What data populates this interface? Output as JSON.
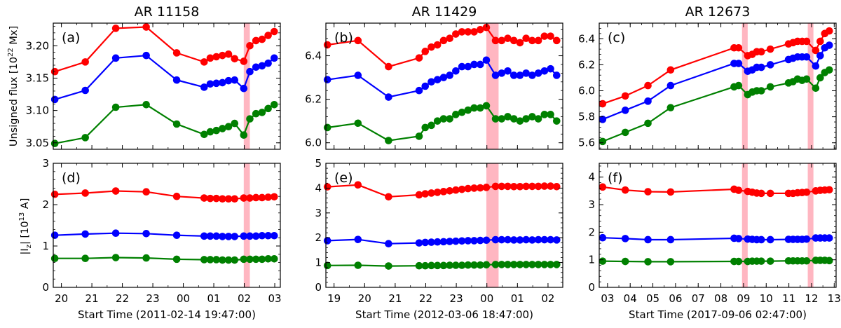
{
  "colors": {
    "red": "#ff0000",
    "blue": "#0000ff",
    "green": "#008000",
    "flare": "#ffb6c1"
  },
  "ylabels": {
    "top": "Unsigned flux [10",
    "top_sup": "22",
    "top_end": " Mx]",
    "bottom": "|I",
    "bottom_sub": "z",
    "bottom_mid": "| [10",
    "bottom_sup": "13",
    "bottom_end": " A]"
  },
  "chart_data": [
    {
      "type": "line",
      "panel": "(a)",
      "title": "AR 11158",
      "xlabel": "Start Time (2011-02-14 19:47:00)",
      "x_unit": "hours since start",
      "xlim": [
        -0.05,
        7.4
      ],
      "xticks": [
        0.217,
        1.217,
        2.217,
        3.217,
        4.217,
        5.217,
        6.217,
        7.217
      ],
      "xtick_labels": [
        "20",
        "21",
        "22",
        "23",
        "00",
        "01",
        "02",
        "03"
      ],
      "ylim": [
        3.04,
        3.235
      ],
      "yticks": [
        3.05,
        3.1,
        3.15,
        3.2
      ],
      "ytick_labels": [
        "3.05",
        "3.10",
        "3.15",
        "3.20"
      ],
      "flares": [
        [
          6.2,
          6.4
        ]
      ],
      "x": [
        0,
        1,
        2,
        3,
        4,
        4.9,
        5.1,
        5.3,
        5.5,
        5.7,
        5.9,
        6.2,
        6.4,
        6.6,
        6.8,
        7.0,
        7.2
      ],
      "series": [
        {
          "color": "red",
          "values": [
            3.16,
            3.175,
            3.227,
            3.229,
            3.189,
            3.175,
            3.181,
            3.183,
            3.185,
            3.187,
            3.18,
            3.176,
            3.2,
            3.208,
            3.21,
            3.216,
            3.222
          ]
        },
        {
          "color": "blue",
          "values": [
            3.117,
            3.131,
            3.181,
            3.185,
            3.147,
            3.136,
            3.141,
            3.142,
            3.143,
            3.146,
            3.147,
            3.134,
            3.16,
            3.167,
            3.169,
            3.173,
            3.181
          ]
        },
        {
          "color": "green",
          "values": [
            3.049,
            3.058,
            3.105,
            3.109,
            3.079,
            3.063,
            3.067,
            3.069,
            3.072,
            3.075,
            3.08,
            3.062,
            3.087,
            3.095,
            3.097,
            3.103,
            3.109
          ]
        }
      ]
    },
    {
      "type": "line",
      "panel": "(b)",
      "title": "AR 11429",
      "xlabel": "Start Time (2012-03-06 18:47:00)",
      "x_unit": "hours since start",
      "xlim": [
        -0.05,
        7.7
      ],
      "xticks": [
        0.217,
        1.217,
        2.217,
        3.217,
        4.217,
        5.217,
        6.217,
        7.217
      ],
      "xtick_labels": [
        "19",
        "20",
        "21",
        "22",
        "23",
        "00",
        "01",
        "02"
      ],
      "ylim": [
        5.97,
        6.55
      ],
      "yticks": [
        6.0,
        6.2,
        6.4
      ],
      "ytick_labels": [
        "6.0",
        "6.2",
        "6.4"
      ],
      "flares": [
        [
          5.2,
          5.6
        ]
      ],
      "x": [
        0,
        1,
        2,
        3,
        3.2,
        3.4,
        3.6,
        3.8,
        4.0,
        4.2,
        4.4,
        4.6,
        4.8,
        5.0,
        5.2,
        5.5,
        5.7,
        5.9,
        6.1,
        6.3,
        6.5,
        6.7,
        6.9,
        7.1,
        7.3,
        7.5
      ],
      "series": [
        {
          "color": "red",
          "values": [
            6.45,
            6.47,
            6.35,
            6.39,
            6.42,
            6.44,
            6.45,
            6.47,
            6.48,
            6.5,
            6.51,
            6.51,
            6.51,
            6.52,
            6.53,
            6.47,
            6.47,
            6.48,
            6.47,
            6.46,
            6.48,
            6.47,
            6.47,
            6.49,
            6.49,
            6.47
          ]
        },
        {
          "color": "blue",
          "values": [
            6.29,
            6.31,
            6.21,
            6.24,
            6.26,
            6.28,
            6.29,
            6.3,
            6.31,
            6.33,
            6.35,
            6.35,
            6.36,
            6.36,
            6.38,
            6.31,
            6.32,
            6.33,
            6.31,
            6.31,
            6.32,
            6.31,
            6.32,
            6.33,
            6.34,
            6.31
          ]
        },
        {
          "color": "green",
          "values": [
            6.07,
            6.09,
            6.01,
            6.03,
            6.07,
            6.08,
            6.1,
            6.11,
            6.11,
            6.13,
            6.14,
            6.15,
            6.16,
            6.16,
            6.17,
            6.11,
            6.11,
            6.12,
            6.11,
            6.1,
            6.11,
            6.12,
            6.11,
            6.13,
            6.13,
            6.1
          ]
        }
      ]
    },
    {
      "type": "line",
      "panel": "(c)",
      "title": "AR 12673",
      "xlabel": "Start Time (2017-09-06 02:47:00)",
      "x_unit": "hours since start",
      "xlim": [
        -0.15,
        10.3
      ],
      "xticks": [
        0.217,
        1.217,
        2.217,
        3.217,
        4.217,
        5.217,
        6.217,
        7.217,
        8.217,
        9.217,
        10.217
      ],
      "xtick_labels": [
        "03",
        "04",
        "05",
        "06",
        "07",
        "08",
        "09",
        "10",
        "11",
        "12",
        "13"
      ],
      "ylim": [
        5.55,
        6.52
      ],
      "yticks": [
        5.6,
        5.8,
        6.0,
        6.2,
        6.4
      ],
      "ytick_labels": [
        "5.6",
        "5.8",
        "6.0",
        "6.2",
        "6.4"
      ],
      "flares": [
        [
          6.15,
          6.4
        ],
        [
          9.05,
          9.3
        ]
      ],
      "x": [
        0,
        1,
        2,
        3,
        5.8,
        6.0,
        6.4,
        6.6,
        6.8,
        7.0,
        7.4,
        8.2,
        8.4,
        8.6,
        8.8,
        9.0,
        9.4,
        9.6,
        9.8,
        10.0
      ],
      "series": [
        {
          "color": "red",
          "values": [
            5.9,
            5.96,
            6.04,
            6.16,
            6.33,
            6.33,
            6.27,
            6.28,
            6.3,
            6.3,
            6.32,
            6.36,
            6.37,
            6.38,
            6.38,
            6.38,
            6.31,
            6.38,
            6.44,
            6.46
          ]
        },
        {
          "color": "blue",
          "values": [
            5.78,
            5.85,
            5.92,
            6.04,
            6.21,
            6.21,
            6.15,
            6.16,
            6.18,
            6.18,
            6.2,
            6.24,
            6.25,
            6.26,
            6.26,
            6.26,
            6.19,
            6.27,
            6.33,
            6.35
          ]
        },
        {
          "color": "green",
          "values": [
            5.61,
            5.68,
            5.75,
            5.87,
            6.03,
            6.04,
            5.97,
            5.99,
            6.0,
            6.0,
            6.03,
            6.06,
            6.07,
            6.09,
            6.08,
            6.09,
            6.02,
            6.1,
            6.14,
            6.16
          ]
        }
      ]
    },
    {
      "type": "line",
      "panel": "(d)",
      "title": "",
      "xlabel": "Start Time (2011-02-14 19:47:00)",
      "x_unit": "hours since start",
      "xlim": [
        -0.05,
        7.4
      ],
      "xticks": [
        0.217,
        1.217,
        2.217,
        3.217,
        4.217,
        5.217,
        6.217,
        7.217
      ],
      "xtick_labels": [
        "20",
        "21",
        "22",
        "23",
        "00",
        "01",
        "02",
        "03"
      ],
      "ylim": [
        0,
        3
      ],
      "yticks": [
        0,
        1,
        2,
        3
      ],
      "ytick_labels": [
        "0",
        "1",
        "2",
        "3"
      ],
      "flares": [
        [
          6.2,
          6.4
        ]
      ],
      "x": [
        0,
        1,
        2,
        3,
        4,
        4.9,
        5.1,
        5.3,
        5.5,
        5.7,
        5.9,
        6.2,
        6.4,
        6.6,
        6.8,
        7.0,
        7.2
      ],
      "series": [
        {
          "color": "red",
          "values": [
            2.25,
            2.28,
            2.33,
            2.31,
            2.2,
            2.16,
            2.15,
            2.15,
            2.14,
            2.14,
            2.14,
            2.16,
            2.16,
            2.17,
            2.17,
            2.18,
            2.19
          ]
        },
        {
          "color": "blue",
          "values": [
            1.26,
            1.29,
            1.31,
            1.3,
            1.26,
            1.24,
            1.24,
            1.24,
            1.23,
            1.23,
            1.23,
            1.24,
            1.24,
            1.24,
            1.25,
            1.25,
            1.25
          ]
        },
        {
          "color": "green",
          "values": [
            0.7,
            0.7,
            0.72,
            0.71,
            0.68,
            0.67,
            0.67,
            0.67,
            0.66,
            0.66,
            0.66,
            0.68,
            0.68,
            0.68,
            0.68,
            0.69,
            0.69
          ]
        }
      ]
    },
    {
      "type": "line",
      "panel": "(e)",
      "title": "",
      "xlabel": "Start Time (2012-03-06 18:47:00)",
      "x_unit": "hours since start",
      "xlim": [
        -0.05,
        7.7
      ],
      "xticks": [
        0.217,
        1.217,
        2.217,
        3.217,
        4.217,
        5.217,
        6.217,
        7.217
      ],
      "xtick_labels": [
        "19",
        "20",
        "21",
        "22",
        "23",
        "00",
        "01",
        "02"
      ],
      "ylim": [
        0,
        5
      ],
      "yticks": [
        0,
        1,
        2,
        3,
        4,
        5
      ],
      "ytick_labels": [
        "0",
        "1",
        "2",
        "3",
        "4",
        "5"
      ],
      "flares": [
        [
          5.2,
          5.6
        ]
      ],
      "x": [
        0,
        1,
        2,
        3,
        3.2,
        3.4,
        3.6,
        3.8,
        4.0,
        4.2,
        4.4,
        4.6,
        4.8,
        5.0,
        5.2,
        5.5,
        5.7,
        5.9,
        6.1,
        6.3,
        6.5,
        6.7,
        6.9,
        7.1,
        7.3,
        7.5
      ],
      "series": [
        {
          "color": "red",
          "values": [
            4.05,
            4.13,
            3.65,
            3.73,
            3.77,
            3.8,
            3.83,
            3.86,
            3.89,
            3.92,
            3.95,
            3.98,
            4.0,
            4.01,
            4.03,
            4.07,
            4.07,
            4.07,
            4.06,
            4.06,
            4.07,
            4.07,
            4.07,
            4.08,
            4.08,
            4.06
          ]
        },
        {
          "color": "blue",
          "values": [
            1.88,
            1.93,
            1.76,
            1.79,
            1.81,
            1.82,
            1.83,
            1.84,
            1.85,
            1.86,
            1.87,
            1.88,
            1.88,
            1.89,
            1.9,
            1.92,
            1.92,
            1.92,
            1.91,
            1.91,
            1.92,
            1.91,
            1.92,
            1.92,
            1.92,
            1.91
          ]
        },
        {
          "color": "green",
          "values": [
            0.88,
            0.89,
            0.86,
            0.87,
            0.87,
            0.88,
            0.88,
            0.88,
            0.89,
            0.89,
            0.89,
            0.9,
            0.9,
            0.9,
            0.91,
            0.92,
            0.92,
            0.92,
            0.92,
            0.92,
            0.92,
            0.92,
            0.92,
            0.92,
            0.92,
            0.92
          ]
        }
      ]
    },
    {
      "type": "line",
      "panel": "(f)",
      "title": "",
      "xlabel": "Start Time (2017-09-06 02:47:00)",
      "x_unit": "hours since start",
      "xlim": [
        -0.15,
        10.3
      ],
      "xticks": [
        0.217,
        1.217,
        2.217,
        3.217,
        4.217,
        5.217,
        6.217,
        7.217,
        8.217,
        9.217,
        10.217
      ],
      "xtick_labels": [
        "03",
        "04",
        "05",
        "06",
        "07",
        "08",
        "09",
        "10",
        "11",
        "12",
        "13"
      ],
      "ylim": [
        0,
        4.5
      ],
      "yticks": [
        0,
        1,
        2,
        3,
        4
      ],
      "ytick_labels": [
        "0",
        "1",
        "2",
        "3",
        "4"
      ],
      "flares": [
        [
          6.15,
          6.4
        ],
        [
          9.05,
          9.3
        ]
      ],
      "x": [
        0,
        1,
        2,
        3,
        5.8,
        6.0,
        6.4,
        6.6,
        6.8,
        7.0,
        7.4,
        8.2,
        8.4,
        8.6,
        8.8,
        9.0,
        9.4,
        9.6,
        9.8,
        10.0
      ],
      "series": [
        {
          "color": "red",
          "values": [
            3.64,
            3.53,
            3.47,
            3.46,
            3.56,
            3.52,
            3.48,
            3.45,
            3.42,
            3.41,
            3.41,
            3.41,
            3.41,
            3.43,
            3.44,
            3.45,
            3.5,
            3.52,
            3.53,
            3.54
          ]
        },
        {
          "color": "blue",
          "values": [
            1.8,
            1.77,
            1.73,
            1.73,
            1.78,
            1.77,
            1.75,
            1.74,
            1.73,
            1.73,
            1.73,
            1.74,
            1.74,
            1.74,
            1.74,
            1.75,
            1.79,
            1.79,
            1.79,
            1.79
          ]
        },
        {
          "color": "green",
          "values": [
            0.95,
            0.94,
            0.93,
            0.93,
            0.94,
            0.94,
            0.94,
            0.95,
            0.95,
            0.95,
            0.95,
            0.96,
            0.96,
            0.96,
            0.96,
            0.96,
            0.98,
            0.98,
            0.98,
            0.97
          ]
        }
      ]
    }
  ]
}
